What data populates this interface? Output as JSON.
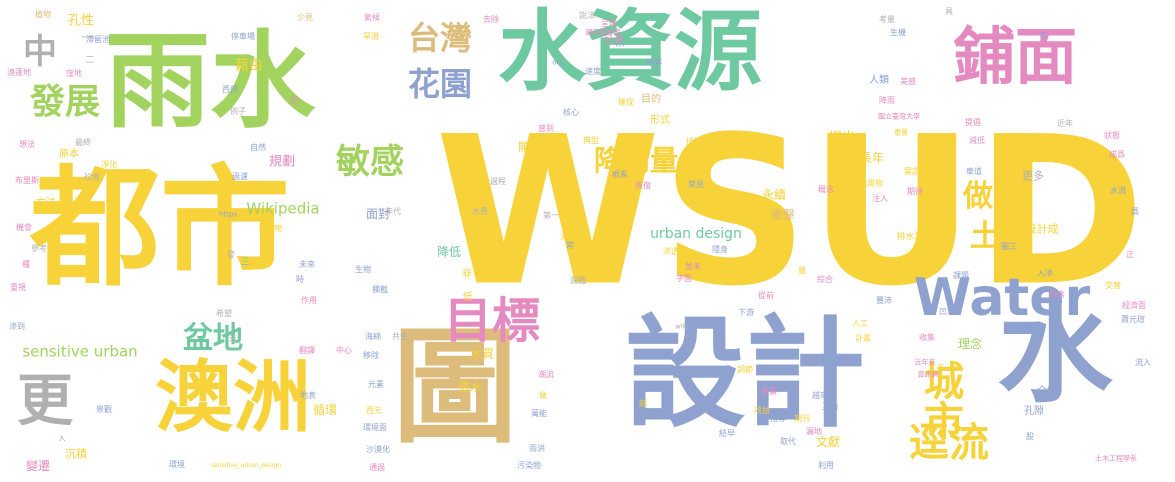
{
  "palette": {
    "yellow": "#f7d239",
    "blue": "#8fa2cf",
    "green": "#a3d35f",
    "teal": "#6fc9a0",
    "pink": "#e58ac0",
    "tan": "#ddbb7b",
    "gray": "#b0b0b0",
    "orange": "#f4a860"
  },
  "words": [
    {
      "text": "WSUD",
      "color": "yellow",
      "weight": 100
    },
    {
      "text": "都市",
      "color": "yellow",
      "weight": 90
    },
    {
      "text": "雨水",
      "color": "green",
      "weight": 88
    },
    {
      "text": "設計",
      "color": "blue",
      "weight": 85
    },
    {
      "text": "水資源",
      "color": "teal",
      "weight": 80
    },
    {
      "text": "圖",
      "color": "tan",
      "weight": 78
    },
    {
      "text": "澳洲",
      "color": "yellow",
      "weight": 70
    },
    {
      "text": "水",
      "color": "blue",
      "weight": 72
    },
    {
      "text": "鋪面",
      "color": "pink",
      "weight": 62
    },
    {
      "text": "Water",
      "color": "blue",
      "weight": 55
    },
    {
      "text": "目標",
      "color": "pink",
      "weight": 52
    },
    {
      "text": "更",
      "color": "gray",
      "weight": 50
    },
    {
      "text": "城市",
      "color": "yellow",
      "weight": 45
    },
    {
      "text": "逕流",
      "color": "yellow",
      "weight": 42
    },
    {
      "text": "花園",
      "color": "blue",
      "weight": 40
    },
    {
      "text": "發展",
      "color": "green",
      "weight": 40
    },
    {
      "text": "敏感",
      "color": "green",
      "weight": 38
    },
    {
      "text": "降雨量",
      "color": "yellow",
      "weight": 36
    },
    {
      "text": "台灣",
      "color": "tan",
      "weight": 35
    },
    {
      "text": "中",
      "color": "gray",
      "weight": 35
    },
    {
      "text": "土壤",
      "color": "yellow",
      "weight": 34
    },
    {
      "text": "做法",
      "color": "yellow",
      "weight": 34
    },
    {
      "text": "盆地",
      "color": "teal",
      "weight": 30
    },
    {
      "text": "sensitive urban",
      "color": "green",
      "weight": 15
    },
    {
      "text": "Wikipedia",
      "color": "green",
      "weight": 15
    },
    {
      "text": "urban design",
      "color": "teal",
      "weight": 14
    },
    {
      "text": "孔性",
      "color": "yellow",
      "weight": 13
    },
    {
      "text": "藉由",
      "color": "yellow",
      "weight": 14
    },
    {
      "text": "規劃",
      "color": "pink",
      "weight": 13
    },
    {
      "text": "提出",
      "color": "yellow",
      "weight": 13
    },
    {
      "text": "長年",
      "color": "yellow",
      "weight": 12
    },
    {
      "text": "面對",
      "color": "blue",
      "weight": 12
    },
    {
      "text": "降低",
      "color": "teal",
      "weight": 12
    },
    {
      "text": "永續",
      "color": "yellow",
      "weight": 12
    },
    {
      "text": "衝擊",
      "color": "tan",
      "weight": 12
    },
    {
      "text": "設計成",
      "color": "yellow",
      "weight": 11
    },
    {
      "text": "更多",
      "color": "gray",
      "weight": 11
    },
    {
      "text": "理念",
      "color": "green",
      "weight": 12
    },
    {
      "text": "文獻",
      "color": "yellow",
      "weight": 12
    },
    {
      "text": "水質",
      "color": "yellow",
      "weight": 12
    },
    {
      "text": "透水",
      "color": "yellow",
      "weight": 12
    },
    {
      "text": "循環",
      "color": "yellow",
      "weight": 12
    },
    {
      "text": "沉積",
      "color": "yellow",
      "weight": 11
    },
    {
      "text": "變遷",
      "color": "pink",
      "weight": 12
    },
    {
      "text": "開發",
      "color": "yellow",
      "weight": 11
    },
    {
      "text": "原本",
      "color": "yellow",
      "weight": 10
    },
    {
      "text": "方法",
      "color": "yellow",
      "weight": 10
    },
    {
      "text": "社會",
      "color": "pink",
      "weight": 10
    },
    {
      "text": "形式",
      "color": "yellow",
      "weight": 10
    },
    {
      "text": "目的",
      "color": "tan",
      "weight": 10
    },
    {
      "text": "人類",
      "color": "blue",
      "weight": 10
    },
    {
      "text": "介紹",
      "color": "blue",
      "weight": 10
    },
    {
      "text": "孔隙",
      "color": "blue",
      "weight": 10
    },
    {
      "text": "排水溝",
      "color": "yellow",
      "weight": 9
    },
    {
      "text": "非",
      "color": "yellow",
      "weight": 10
    },
    {
      "text": "低",
      "color": "yellow",
      "weight": 10
    },
    {
      "text": "三",
      "color": "teal",
      "weight": 9
    },
    {
      "text": "二",
      "color": "gray",
      "weight": 9
    },
    {
      "text": "一",
      "color": "gray",
      "weight": 9
    },
    {
      "text": "滯留池",
      "color": "blue",
      "weight": 8
    },
    {
      "text": "植物",
      "color": "tan",
      "weight": 8
    },
    {
      "text": "停車場",
      "color": "blue",
      "weight": 8
    },
    {
      "text": "少見",
      "color": "tan",
      "weight": 8
    },
    {
      "text": "氣候",
      "color": "pink",
      "weight": 8
    },
    {
      "text": "旱澇",
      "color": "yellow",
      "weight": 8
    },
    {
      "text": "去除",
      "color": "pink",
      "weight": 8
    },
    {
      "text": "說法",
      "color": "gray",
      "weight": 8
    },
    {
      "text": "呈現",
      "color": "pink",
      "weight": 8
    },
    {
      "text": "國家圖書館",
      "color": "pink",
      "weight": 7
    },
    {
      "text": "en",
      "color": "blue",
      "weight": 7
    },
    {
      "text": "org",
      "color": "blue",
      "weight": 7
    },
    {
      "text": "速度",
      "color": "blue",
      "weight": 8
    },
    {
      "text": "理解",
      "color": "blue",
      "weight": 8
    },
    {
      "text": "考量",
      "color": "gray",
      "weight": 8
    },
    {
      "text": "具",
      "color": "gray",
      "weight": 8
    },
    {
      "text": "市",
      "color": "blue",
      "weight": 8
    },
    {
      "text": "生機",
      "color": "blue",
      "weight": 8
    },
    {
      "text": "美感",
      "color": "pink",
      "weight": 8
    },
    {
      "text": "降雨",
      "color": "pink",
      "weight": 8
    },
    {
      "text": "國立臺灣大學",
      "color": "pink",
      "weight": 7
    },
    {
      "text": "提倡",
      "color": "pink",
      "weight": 8
    },
    {
      "text": "近年",
      "color": "gray",
      "weight": 8
    },
    {
      "text": "減低",
      "color": "pink",
      "weight": 8
    },
    {
      "text": "狀態",
      "color": "pink",
      "weight": 8
    },
    {
      "text": "成爲",
      "color": "pink",
      "weight": 8
    },
    {
      "text": "書量",
      "color": "yellow",
      "weight": 7
    },
    {
      "text": "沈澱物",
      "color": "yellow",
      "weight": 8
    },
    {
      "text": "注入",
      "color": "pink",
      "weight": 8
    },
    {
      "text": "實證",
      "color": "yellow",
      "weight": 8
    },
    {
      "text": "車道",
      "color": "blue",
      "weight": 8
    },
    {
      "text": "水流",
      "color": "blue",
      "weight": 8
    },
    {
      "text": "期待",
      "color": "pink",
      "weight": 8
    },
    {
      "text": "概念",
      "color": "pink",
      "weight": 8
    },
    {
      "text": "入滲",
      "color": "blue",
      "weight": 8
    },
    {
      "text": "圖三",
      "color": "blue",
      "weight": 8
    },
    {
      "text": "方針",
      "color": "yellow",
      "weight": 8
    },
    {
      "text": "包含",
      "color": "pink",
      "weight": 8
    },
    {
      "text": "爲",
      "color": "blue",
      "weight": 8
    },
    {
      "text": "正",
      "color": "pink",
      "weight": 8
    },
    {
      "text": "課題",
      "color": "blue",
      "weight": 8
    },
    {
      "text": "交替",
      "color": "yellow",
      "weight": 8
    },
    {
      "text": "經濟面",
      "color": "pink",
      "weight": 8
    },
    {
      "text": "綜合",
      "color": "pink",
      "weight": 8
    },
    {
      "text": "量",
      "color": "yellow",
      "weight": 8
    },
    {
      "text": "凹洞",
      "color": "blue",
      "weight": 8
    },
    {
      "text": "豐沛",
      "color": "blue",
      "weight": 8
    },
    {
      "text": "蕭元瑄",
      "color": "blue",
      "weight": 8
    },
    {
      "text": "流入",
      "color": "blue",
      "weight": 8
    },
    {
      "text": "收集",
      "color": "pink",
      "weight": 8
    },
    {
      "text": "人工",
      "color": "yellow",
      "weight": 8
    },
    {
      "text": "計畫",
      "color": "yellow",
      "weight": 8
    },
    {
      "text": "下游",
      "color": "blue",
      "weight": 8
    },
    {
      "text": "從前",
      "color": "pink",
      "weight": 8
    },
    {
      "text": "調節",
      "color": "yellow",
      "weight": 8
    },
    {
      "text": "要素",
      "color": "pink",
      "weight": 8
    },
    {
      "text": "越來越",
      "color": "blue",
      "weight": 8
    },
    {
      "text": "互動",
      "color": "blue",
      "weight": 8
    },
    {
      "text": "效益",
      "color": "yellow",
      "weight": 8
    },
    {
      "text": "指導",
      "color": "blue",
      "weight": 8
    },
    {
      "text": "期刊",
      "color": "yellow",
      "weight": 8
    },
    {
      "text": "漏地",
      "color": "pink",
      "weight": 8
    },
    {
      "text": "取代",
      "color": "blue",
      "weight": 8
    },
    {
      "text": "利用",
      "color": "blue",
      "weight": 8
    },
    {
      "text": "結早",
      "color": "blue",
      "weight": 8
    },
    {
      "text": "土木工程學系",
      "color": "pink",
      "weight": 7
    },
    {
      "text": "股",
      "color": "blue",
      "weight": 8
    },
    {
      "text": "資訊網",
      "color": "pink",
      "weight": 7
    },
    {
      "text": "逕",
      "color": "yellow",
      "weight": 7
    },
    {
      "text": "近年來",
      "color": "pink",
      "weight": 7
    },
    {
      "text": "核心",
      "color": "blue",
      "weight": 8
    },
    {
      "text": "確保",
      "color": "yellow",
      "weight": 8
    },
    {
      "text": "感到",
      "color": "pink",
      "weight": 8
    },
    {
      "text": "持續",
      "color": "yellow",
      "weight": 8
    },
    {
      "text": "典型",
      "color": "yellow",
      "weight": 8
    },
    {
      "text": "根系",
      "color": "blue",
      "weight": 8
    },
    {
      "text": "恢復",
      "color": "pink",
      "weight": 8
    },
    {
      "text": "過程",
      "color": "gray",
      "weight": 8
    },
    {
      "text": "常見",
      "color": "blue",
      "weight": 8
    },
    {
      "text": "第一",
      "color": "gray",
      "weight": 8
    },
    {
      "text": "水患",
      "color": "gray",
      "weight": 8
    },
    {
      "text": "年代",
      "color": "gray",
      "weight": 8
    },
    {
      "text": "流",
      "color": "yellow",
      "weight": 8
    },
    {
      "text": "常",
      "color": "blue",
      "weight": 8
    },
    {
      "text": "滲透",
      "color": "yellow",
      "weight": 8
    },
    {
      "text": "並未",
      "color": "pink",
      "weight": 8
    },
    {
      "text": "隱身",
      "color": "blue",
      "weight": 8
    },
    {
      "text": "字面",
      "color": "pink",
      "weight": 8
    },
    {
      "text": "面臨",
      "color": "gray",
      "weight": 8
    },
    {
      "text": "wiki",
      "color": "gray",
      "weight": 7
    },
    {
      "text": "生物",
      "color": "blue",
      "weight": 8
    },
    {
      "text": "攔截",
      "color": "blue",
      "weight": 8
    },
    {
      "text": "未來",
      "color": "blue",
      "weight": 8
    },
    {
      "text": "時",
      "color": "blue",
      "weight": 8
    },
    {
      "text": "作用",
      "color": "pink",
      "weight": 8
    },
    {
      "text": "海綿",
      "color": "blue",
      "weight": 8
    },
    {
      "text": "共生",
      "color": "gray",
      "weight": 8
    },
    {
      "text": "中心",
      "color": "pink",
      "weight": 8
    },
    {
      "text": "移除",
      "color": "blue",
      "weight": 8
    },
    {
      "text": "潮流",
      "color": "pink",
      "weight": 8
    },
    {
      "text": "元素",
      "color": "blue",
      "weight": 8
    },
    {
      "text": "萬能",
      "color": "blue",
      "weight": 8
    },
    {
      "text": "做",
      "color": "yellow",
      "weight": 8
    },
    {
      "text": "越",
      "color": "yellow",
      "weight": 8
    },
    {
      "text": "雨洪",
      "color": "blue",
      "weight": 8
    },
    {
      "text": "污染物",
      "color": "blue",
      "weight": 8
    },
    {
      "text": "地表",
      "color": "blue",
      "weight": 8
    },
    {
      "text": "西元",
      "color": "yellow",
      "weight": 8
    },
    {
      "text": "環境面",
      "color": "blue",
      "weight": 8
    },
    {
      "text": "沙漠化",
      "color": "blue",
      "weight": 8
    },
    {
      "text": "通過",
      "color": "pink",
      "weight": 8
    },
    {
      "text": "環境",
      "color": "blue",
      "weight": 8
    },
    {
      "text": "sensitive_urban_design",
      "color": "yellow",
      "weight": 6
    },
    {
      "text": "景觀",
      "color": "blue",
      "weight": 8
    },
    {
      "text": "翻譯",
      "color": "pink",
      "weight": 8
    },
    {
      "text": "希望",
      "color": "gray",
      "weight": 8
    },
    {
      "text": "苦",
      "color": "gray",
      "weight": 8
    },
    {
      "text": "發",
      "color": "gray",
      "weight": 8
    },
    {
      "text": "沉積物",
      "color": "yellow",
      "weight": 8
    },
    {
      "text": "https",
      "color": "blue",
      "weight": 7
    },
    {
      "text": "過濾",
      "color": "blue",
      "weight": 8
    },
    {
      "text": "自然",
      "color": "blue",
      "weight": 8
    },
    {
      "text": "淨化",
      "color": "yellow",
      "weight": 8
    },
    {
      "text": "珍貴",
      "color": "gray",
      "weight": 8
    },
    {
      "text": "最終",
      "color": "gray",
      "weight": 8
    },
    {
      "text": "想法",
      "color": "pink",
      "weight": 8
    },
    {
      "text": "布里斯",
      "color": "pink",
      "weight": 8
    },
    {
      "text": "機會",
      "color": "pink",
      "weight": 8
    },
    {
      "text": "參考",
      "color": "gray",
      "weight": 8
    },
    {
      "text": "種",
      "color": "pink",
      "weight": 8
    },
    {
      "text": "重視",
      "color": "pink",
      "weight": 8
    },
    {
      "text": "滲到",
      "color": "blue",
      "weight": 8
    },
    {
      "text": "入",
      "color": "blue",
      "weight": 7
    },
    {
      "text": "窪地",
      "color": "pink",
      "weight": 8
    },
    {
      "text": "澆蓬地",
      "color": "pink",
      "weight": 8
    },
    {
      "text": "西部",
      "color": "blue",
      "weight": 8
    },
    {
      "text": "例子",
      "color": "gray",
      "weight": 8
    },
    {
      "text": "四",
      "color": "pink",
      "weight": 8
    }
  ]
}
